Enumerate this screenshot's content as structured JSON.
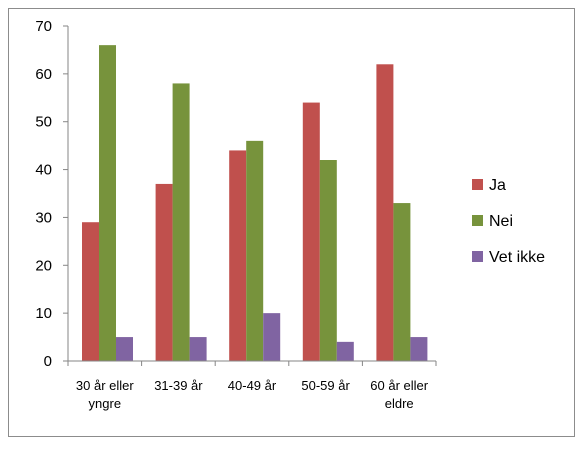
{
  "chart_data": {
    "type": "bar",
    "categories": [
      [
        "30 år eller",
        "yngre"
      ],
      [
        "31-39 år"
      ],
      [
        "40-49 år"
      ],
      [
        "50-59 år"
      ],
      [
        "60 år eller",
        "eldre"
      ]
    ],
    "series": [
      {
        "name": "Ja",
        "color": "#c0504d",
        "values": [
          29,
          37,
          44,
          54,
          62
        ]
      },
      {
        "name": "Nei",
        "color": "#77933c",
        "values": [
          66,
          58,
          46,
          42,
          33
        ]
      },
      {
        "name": "Vet ikke",
        "color": "#8064a2",
        "values": [
          5,
          5,
          10,
          4,
          5
        ]
      }
    ],
    "ylim": [
      0,
      70
    ],
    "yticks": [
      0,
      10,
      20,
      30,
      40,
      50,
      60,
      70
    ],
    "grid": false,
    "legend_position": "right",
    "title": "",
    "xlabel": "",
    "ylabel": ""
  }
}
